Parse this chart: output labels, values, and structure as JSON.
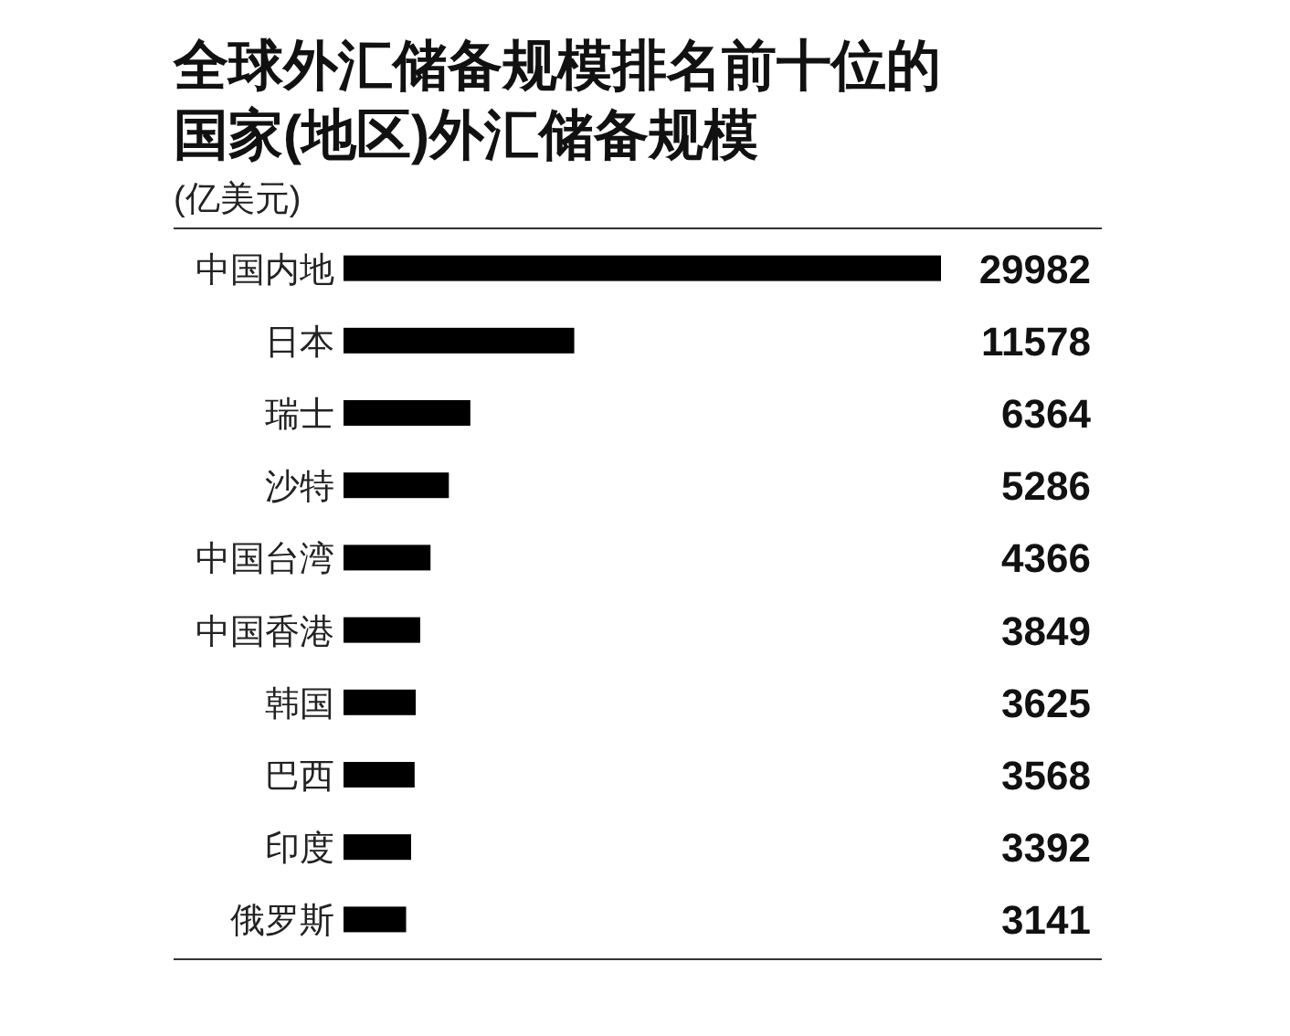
{
  "chart_data": {
    "type": "bar",
    "orientation": "horizontal",
    "title": "全球外汇储备规模排名前十位的国家(地区)外汇储备规模",
    "subtitle": "(亿美元)",
    "categories": [
      "中国内地",
      "日本",
      "瑞士",
      "沙特",
      "中国台湾",
      "中国香港",
      "韩国",
      "巴西",
      "印度",
      "俄罗斯"
    ],
    "values": [
      29982,
      11578,
      6364,
      5286,
      4366,
      3849,
      3625,
      3568,
      3392,
      3141
    ],
    "color": "#000000",
    "data_labels": true
  }
}
